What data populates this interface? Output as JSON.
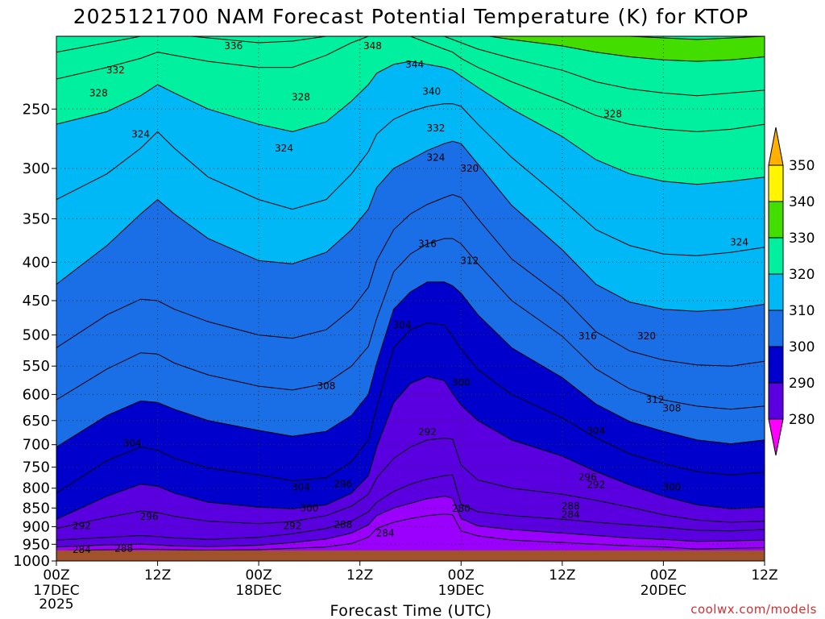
{
  "chart_data": {
    "type": "heatmap",
    "title": "2025121700 NAM Forecast Potential Temperature (K) for KTOP",
    "xlabel": "Forecast Time (UTC)",
    "ylabel": "",
    "x_range_hours": [
      0,
      84
    ],
    "x_ticks": [
      {
        "hour": 0,
        "label": "00Z",
        "sub1": "17DEC",
        "sub2": "2025"
      },
      {
        "hour": 12,
        "label": "12Z",
        "sub1": "",
        "sub2": ""
      },
      {
        "hour": 24,
        "label": "00Z",
        "sub1": "18DEC",
        "sub2": ""
      },
      {
        "hour": 36,
        "label": "12Z",
        "sub1": "",
        "sub2": ""
      },
      {
        "hour": 48,
        "label": "00Z",
        "sub1": "19DEC",
        "sub2": ""
      },
      {
        "hour": 60,
        "label": "12Z",
        "sub1": "",
        "sub2": ""
      },
      {
        "hour": 72,
        "label": "00Z",
        "sub1": "20DEC",
        "sub2": ""
      },
      {
        "hour": 84,
        "label": "12Z",
        "sub1": "",
        "sub2": ""
      }
    ],
    "y_axis": "pressure (hPa), inverted",
    "y_range": [
      1000,
      200
    ],
    "y_ticks": [
      250,
      300,
      350,
      400,
      450,
      500,
      550,
      600,
      650,
      700,
      750,
      800,
      850,
      900,
      950,
      1000
    ],
    "grid": "dotted",
    "surface_pressure": 968,
    "colorbar": {
      "placement": "right",
      "levels": [
        280,
        290,
        300,
        310,
        320,
        330,
        340,
        350
      ],
      "labels": [
        "280",
        "290",
        "300",
        "310",
        "320",
        "330",
        "340",
        "350"
      ],
      "colors": [
        "#ff00ff",
        "#9b00ff",
        "#5a00e0",
        "#0000cc",
        "#1a6ee6",
        "#00b8f5",
        "#00f0a0",
        "#44dd00",
        "#fff500",
        "#ffb000"
      ],
      "extend": "both"
    },
    "isolines_K": {
      "hours": [
        0,
        6,
        10,
        12,
        14,
        18,
        24,
        28,
        32,
        35,
        37,
        38,
        40,
        42,
        44,
        46,
        47,
        48,
        50,
        54,
        60,
        64,
        68,
        72,
        76,
        80,
        84
      ],
      "levels": [
        {
          "theta": 284,
          "p": [
            970,
            966,
            964,
            965,
            966,
            968,
            966,
            962,
            958,
            948,
            930,
            905,
            888,
            878,
            870,
            866,
            868,
            912,
            926,
            938,
            945,
            950,
            955,
            958,
            964,
            962,
            960
          ]
        },
        {
          "theta": 288,
          "p": [
            958,
            952,
            950,
            952,
            955,
            957,
            953,
            945,
            935,
            918,
            895,
            870,
            850,
            838,
            826,
            820,
            825,
            878,
            898,
            908,
            918,
            925,
            932,
            936,
            942,
            940,
            938
          ]
        },
        {
          "theta": 292,
          "p": [
            938,
            930,
            925,
            928,
            932,
            936,
            930,
            920,
            905,
            885,
            860,
            835,
            808,
            790,
            778,
            770,
            768,
            840,
            860,
            870,
            880,
            888,
            895,
            902,
            910,
            912,
            908
          ]
        },
        {
          "theta": 296,
          "p": [
            905,
            875,
            858,
            862,
            872,
            885,
            892,
            886,
            870,
            845,
            815,
            775,
            730,
            705,
            690,
            686,
            688,
            745,
            780,
            800,
            815,
            830,
            848,
            868,
            882,
            888,
            885
          ]
        },
        {
          "theta": 300,
          "p": [
            880,
            820,
            790,
            795,
            812,
            835,
            848,
            852,
            842,
            812,
            770,
            705,
            615,
            580,
            568,
            575,
            598,
            620,
            650,
            690,
            725,
            760,
            792,
            820,
            842,
            852,
            848
          ]
        },
        {
          "theta": 304,
          "p": [
            812,
            735,
            705,
            712,
            730,
            752,
            768,
            782,
            775,
            738,
            690,
            625,
            520,
            492,
            482,
            485,
            502,
            522,
            556,
            600,
            645,
            685,
            720,
            742,
            760,
            768,
            762
          ]
        },
        {
          "theta": 308,
          "p": [
            705,
            640,
            612,
            615,
            628,
            650,
            670,
            682,
            672,
            640,
            600,
            545,
            462,
            438,
            425,
            425,
            430,
            440,
            470,
            520,
            570,
            618,
            652,
            672,
            690,
            698,
            690
          ]
        },
        {
          "theta": 312,
          "p": [
            610,
            555,
            528,
            530,
            545,
            565,
            585,
            592,
            580,
            550,
            518,
            475,
            412,
            390,
            378,
            372,
            372,
            378,
            402,
            450,
            502,
            555,
            590,
            610,
            622,
            628,
            622
          ]
        },
        {
          "theta": 316,
          "p": [
            520,
            470,
            448,
            450,
            462,
            480,
            500,
            505,
            492,
            462,
            432,
            398,
            362,
            345,
            335,
            328,
            325,
            328,
            350,
            396,
            445,
            495,
            525,
            540,
            548,
            550,
            542
          ]
        },
        {
          "theta": 320,
          "p": [
            428,
            380,
            345,
            330,
            345,
            372,
            398,
            402,
            388,
            362,
            340,
            318,
            300,
            292,
            284,
            278,
            276,
            278,
            296,
            336,
            385,
            428,
            452,
            462,
            465,
            462,
            455
          ]
        },
        {
          "theta": 324,
          "p": [
            330,
            305,
            282,
            268,
            282,
            308,
            330,
            340,
            330,
            305,
            285,
            270,
            258,
            252,
            248,
            246,
            246,
            248,
            262,
            290,
            330,
            362,
            380,
            390,
            392,
            388,
            382
          ]
        },
        {
          "theta": 328,
          "p": [
            262,
            252,
            240,
            232,
            238,
            250,
            262,
            268,
            260,
            244,
            232,
            224,
            218,
            216,
            218,
            220,
            222,
            226,
            234,
            250,
            272,
            292,
            305,
            312,
            315,
            312,
            308
          ]
        },
        {
          "theta": 332,
          "p": [
            228,
            220,
            214,
            210,
            212,
            216,
            220,
            220,
            212,
            204,
            200,
            198,
            198,
            200,
            204,
            208,
            210,
            214,
            220,
            230,
            244,
            255,
            262,
            266,
            268,
            266,
            262
          ]
        },
        {
          "theta": 336,
          "p": [
            210,
            204,
            200,
            198,
            199,
            201,
            204,
            203,
            200,
            197,
            196,
            195,
            195,
            196,
            198,
            200,
            202,
            204,
            208,
            214,
            222,
            230,
            235,
            238,
            240,
            238,
            236
          ]
        },
        {
          "theta": 340,
          "p": [
            199,
            197,
            196,
            195,
            195,
            196,
            197,
            196,
            195,
            194,
            193,
            192,
            192,
            193,
            194,
            195,
            196,
            197,
            199,
            202,
            206,
            210,
            213,
            215,
            216,
            215,
            213
          ]
        },
        {
          "theta": 344,
          "p": [
            194,
            193,
            192,
            191,
            191,
            192,
            193,
            192,
            191,
            190,
            190,
            189,
            189,
            190,
            190,
            191,
            191,
            192,
            193,
            195,
            197,
            199,
            200,
            201,
            202,
            201,
            200
          ]
        }
      ]
    },
    "contour_labels": [
      {
        "text": "336",
        "hour": 21,
        "p": 206
      },
      {
        "text": "348",
        "hour": 37.5,
        "p": 206
      },
      {
        "text": "332",
        "hour": 7,
        "p": 222
      },
      {
        "text": "344",
        "hour": 42.5,
        "p": 218
      },
      {
        "text": "328",
        "hour": 5,
        "p": 238
      },
      {
        "text": "340",
        "hour": 44.5,
        "p": 237
      },
      {
        "text": "328",
        "hour": 29,
        "p": 241
      },
      {
        "text": "328",
        "hour": 66,
        "p": 254
      },
      {
        "text": "332",
        "hour": 45,
        "p": 265
      },
      {
        "text": "324",
        "hour": 10,
        "p": 270
      },
      {
        "text": "324",
        "hour": 27,
        "p": 282
      },
      {
        "text": "324",
        "hour": 45,
        "p": 290
      },
      {
        "text": "320",
        "hour": 49,
        "p": 300
      },
      {
        "text": "324",
        "hour": 81,
        "p": 376
      },
      {
        "text": "316",
        "hour": 44,
        "p": 378
      },
      {
        "text": "312",
        "hour": 49,
        "p": 398
      },
      {
        "text": "304",
        "hour": 41,
        "p": 485
      },
      {
        "text": "316",
        "hour": 63,
        "p": 502
      },
      {
        "text": "320",
        "hour": 70,
        "p": 502
      },
      {
        "text": "308",
        "hour": 32,
        "p": 585
      },
      {
        "text": "300",
        "hour": 48,
        "p": 578
      },
      {
        "text": "312",
        "hour": 71,
        "p": 610
      },
      {
        "text": "308",
        "hour": 73,
        "p": 626
      },
      {
        "text": "292",
        "hour": 44,
        "p": 673
      },
      {
        "text": "304",
        "hour": 64,
        "p": 671
      },
      {
        "text": "304",
        "hour": 9,
        "p": 697
      },
      {
        "text": "296",
        "hour": 63,
        "p": 773
      },
      {
        "text": "292",
        "hour": 64,
        "p": 792
      },
      {
        "text": "304",
        "hour": 29,
        "p": 798
      },
      {
        "text": "300",
        "hour": 73,
        "p": 798
      },
      {
        "text": "296",
        "hour": 34,
        "p": 790
      },
      {
        "text": "300",
        "hour": 30,
        "p": 850
      },
      {
        "text": "288",
        "hour": 61,
        "p": 845
      },
      {
        "text": "280",
        "hour": 48,
        "p": 852
      },
      {
        "text": "284",
        "hour": 61,
        "p": 867
      },
      {
        "text": "296",
        "hour": 11,
        "p": 873
      },
      {
        "text": "292",
        "hour": 28,
        "p": 898
      },
      {
        "text": "288",
        "hour": 34,
        "p": 895
      },
      {
        "text": "292",
        "hour": 3,
        "p": 898
      },
      {
        "text": "284",
        "hour": 39,
        "p": 918
      },
      {
        "text": "284",
        "hour": 3,
        "p": 966
      },
      {
        "text": "288",
        "hour": 8,
        "p": 962
      }
    ]
  },
  "credit": "coolwx.com/models"
}
